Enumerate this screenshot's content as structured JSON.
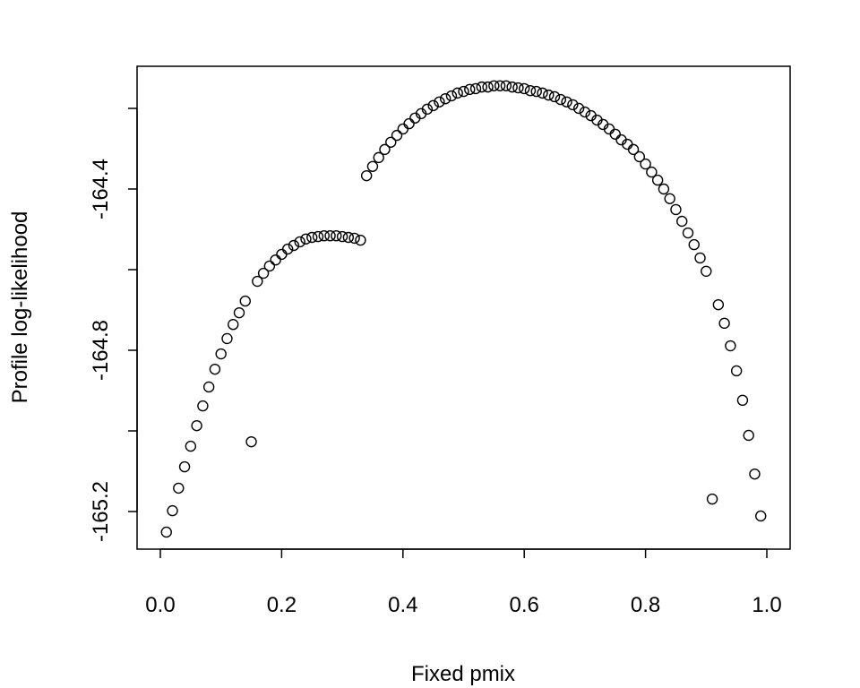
{
  "chart_data": {
    "type": "scatter",
    "x_label": "Fixed pmix",
    "y_label": "Profile log-likelihood",
    "color": "#000000",
    "x": [
      0.01,
      0.02,
      0.03,
      0.04,
      0.05,
      0.06,
      0.07,
      0.08,
      0.09,
      0.1,
      0.11,
      0.12,
      0.13,
      0.14,
      0.15,
      0.16,
      0.17,
      0.18,
      0.19,
      0.2,
      0.21,
      0.22,
      0.23,
      0.24,
      0.25,
      0.26,
      0.27,
      0.28,
      0.29,
      0.3,
      0.31,
      0.32,
      0.33,
      0.34,
      0.35,
      0.36,
      0.37,
      0.38,
      0.39,
      0.4,
      0.41,
      0.42,
      0.43,
      0.44,
      0.45,
      0.46,
      0.47,
      0.48,
      0.49,
      0.5,
      0.51,
      0.52,
      0.53,
      0.54,
      0.55,
      0.56,
      0.57,
      0.58,
      0.59,
      0.6,
      0.61,
      0.62,
      0.63,
      0.64,
      0.65,
      0.66,
      0.67,
      0.68,
      0.69,
      0.7,
      0.71,
      0.72,
      0.73,
      0.74,
      0.75,
      0.76,
      0.77,
      0.78,
      0.79,
      0.8,
      0.81,
      0.82,
      0.83,
      0.84,
      0.85,
      0.86,
      0.87,
      0.88,
      0.89,
      0.9,
      0.91,
      0.92,
      0.93,
      0.94,
      0.95,
      0.96,
      0.97,
      0.98,
      0.99
    ],
    "values": [
      -165.251,
      -165.198,
      -165.142,
      -165.089,
      -165.038,
      -164.987,
      -164.938,
      -164.891,
      -164.847,
      -164.809,
      -164.771,
      -164.736,
      -164.707,
      -164.678,
      -165.027,
      -164.629,
      -164.609,
      -164.591,
      -164.576,
      -164.562,
      -164.549,
      -164.54,
      -164.531,
      -164.524,
      -164.52,
      -164.518,
      -164.516,
      -164.516,
      -164.516,
      -164.518,
      -164.52,
      -164.522,
      -164.527,
      -164.367,
      -164.344,
      -164.322,
      -164.302,
      -164.284,
      -164.267,
      -164.251,
      -164.238,
      -164.224,
      -164.213,
      -164.202,
      -164.193,
      -164.184,
      -164.176,
      -164.169,
      -164.162,
      -164.158,
      -164.153,
      -164.151,
      -164.147,
      -164.147,
      -164.144,
      -164.144,
      -164.144,
      -164.147,
      -164.149,
      -164.151,
      -164.156,
      -164.158,
      -164.162,
      -164.167,
      -164.171,
      -164.178,
      -164.184,
      -164.191,
      -164.2,
      -164.209,
      -164.218,
      -164.229,
      -164.24,
      -164.251,
      -164.264,
      -164.278,
      -164.289,
      -164.302,
      -164.32,
      -164.338,
      -164.358,
      -164.378,
      -164.4,
      -164.424,
      -164.451,
      -164.48,
      -164.509,
      -164.538,
      -164.571,
      -164.604,
      -165.169,
      -164.687,
      -164.733,
      -164.789,
      -164.851,
      -164.924,
      -165.011,
      -165.107,
      -165.211
    ],
    "xlim": [
      -0.0384,
      1.0384
    ],
    "xticks": [
      {
        "value": 0,
        "label": "0.0"
      },
      0.2,
      0.4,
      0.6,
      0.8,
      {
        "value": 1,
        "label": "1.0"
      }
    ],
    "ylim": [
      -165.2933,
      -164.0956
    ],
    "yticks": [
      -165.2,
      -165.0,
      -164.8,
      -164.6,
      -164.4,
      -164.2
    ]
  }
}
